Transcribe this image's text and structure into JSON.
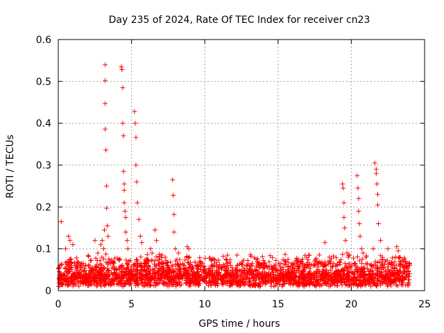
{
  "chart_data": {
    "type": "scatter",
    "title": "Day 235 of 2024, Rate Of TEC Index for receiver cn23",
    "xlabel": "GPS time / hours",
    "ylabel": "ROTI / TECUs",
    "xlim": [
      0,
      25
    ],
    "ylim": [
      0,
      0.6
    ],
    "xticks": [
      0,
      5,
      10,
      15,
      20,
      25
    ],
    "yticks": [
      0,
      0.1,
      0.2,
      0.3,
      0.4,
      0.5,
      0.6
    ],
    "grid": true,
    "marker": "+",
    "marker_color": "#ff0000",
    "points_x": [
      0.2,
      0.5,
      0.7,
      0.8,
      1.0,
      2.5,
      2.7,
      2.9,
      3.0,
      3.1,
      3.15,
      3.2,
      3.2,
      3.2,
      3.2,
      3.25,
      3.3,
      3.3,
      3.35,
      3.4,
      4.3,
      4.35,
      4.4,
      4.4,
      4.45,
      4.45,
      4.5,
      4.5,
      4.5,
      4.55,
      4.6,
      4.6,
      4.7,
      4.75,
      5.2,
      5.25,
      5.3,
      5.3,
      5.35,
      5.4,
      5.5,
      5.6,
      5.7,
      6.3,
      6.4,
      6.6,
      6.7,
      6.9,
      7.3,
      7.8,
      7.85,
      7.9,
      7.9,
      8.0,
      8.2,
      8.8,
      8.9,
      9.5,
      10.8,
      11.1,
      12.2,
      12.5,
      14.0,
      14.1,
      15.2,
      16.5,
      17.5,
      18.2,
      18.5,
      19.4,
      19.45,
      19.5,
      19.5,
      19.55,
      19.6,
      19.7,
      19.8,
      20.4,
      20.45,
      20.5,
      20.5,
      20.55,
      20.6,
      20.7,
      20.8,
      21.0,
      21.5,
      21.6,
      21.7,
      21.7,
      21.75,
      21.8,
      21.8,
      21.85,
      22.0,
      22.5,
      23.1,
      23.2,
      23.3,
      23.6
    ],
    "points_y": [
      0.165,
      0.1,
      0.13,
      0.12,
      0.11,
      0.12,
      0.09,
      0.11,
      0.12,
      0.1,
      0.145,
      0.54,
      0.502,
      0.447,
      0.386,
      0.336,
      0.25,
      0.197,
      0.155,
      0.13,
      0.535,
      0.528,
      0.485,
      0.4,
      0.37,
      0.285,
      0.255,
      0.24,
      0.21,
      0.19,
      0.175,
      0.14,
      0.12,
      0.1,
      0.428,
      0.4,
      0.366,
      0.3,
      0.26,
      0.21,
      0.17,
      0.13,
      0.115,
      0.1,
      0.09,
      0.145,
      0.12,
      0.08,
      0.08,
      0.265,
      0.228,
      0.182,
      0.14,
      0.1,
      0.09,
      0.105,
      0.1,
      0.06,
      0.06,
      0.055,
      0.085,
      0.065,
      0.06,
      0.065,
      0.065,
      0.07,
      0.07,
      0.115,
      0.08,
      0.255,
      0.245,
      0.21,
      0.175,
      0.15,
      0.12,
      0.09,
      0.08,
      0.275,
      0.245,
      0.22,
      0.19,
      0.16,
      0.13,
      0.1,
      0.09,
      0.08,
      0.1,
      0.305,
      0.29,
      0.28,
      0.255,
      0.23,
      0.205,
      0.16,
      0.12,
      0.1,
      0.105,
      0.095,
      0.08,
      0.075
    ]
  }
}
